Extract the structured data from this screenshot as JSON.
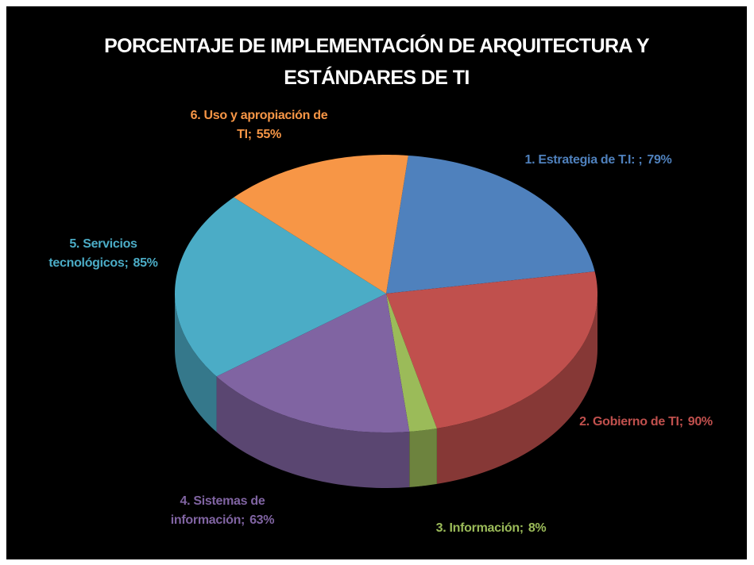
{
  "chart_data": {
    "type": "pie",
    "title": "PORCENTAJE DE IMPLEMENTACIÓN DE ARQUITECTURA Y ESTÁNDARES DE TI",
    "categories": [
      "1. Estrategia de T.I:   ;",
      "2. Gobierno de TI;",
      "3. Información;",
      "4. Sistemas de información;",
      "5. Servicios tecnológicos;",
      "6. Uso  y apropiación de TI;"
    ],
    "values": [
      79,
      90,
      8,
      63,
      85,
      55
    ],
    "value_labels": [
      "79%",
      "90%",
      "8%",
      "63%",
      "85%",
      "55%"
    ],
    "colors": [
      "#4f81bd",
      "#c0504d",
      "#9bbb59",
      "#8064a2",
      "#4bacc6",
      "#f79646"
    ]
  }
}
